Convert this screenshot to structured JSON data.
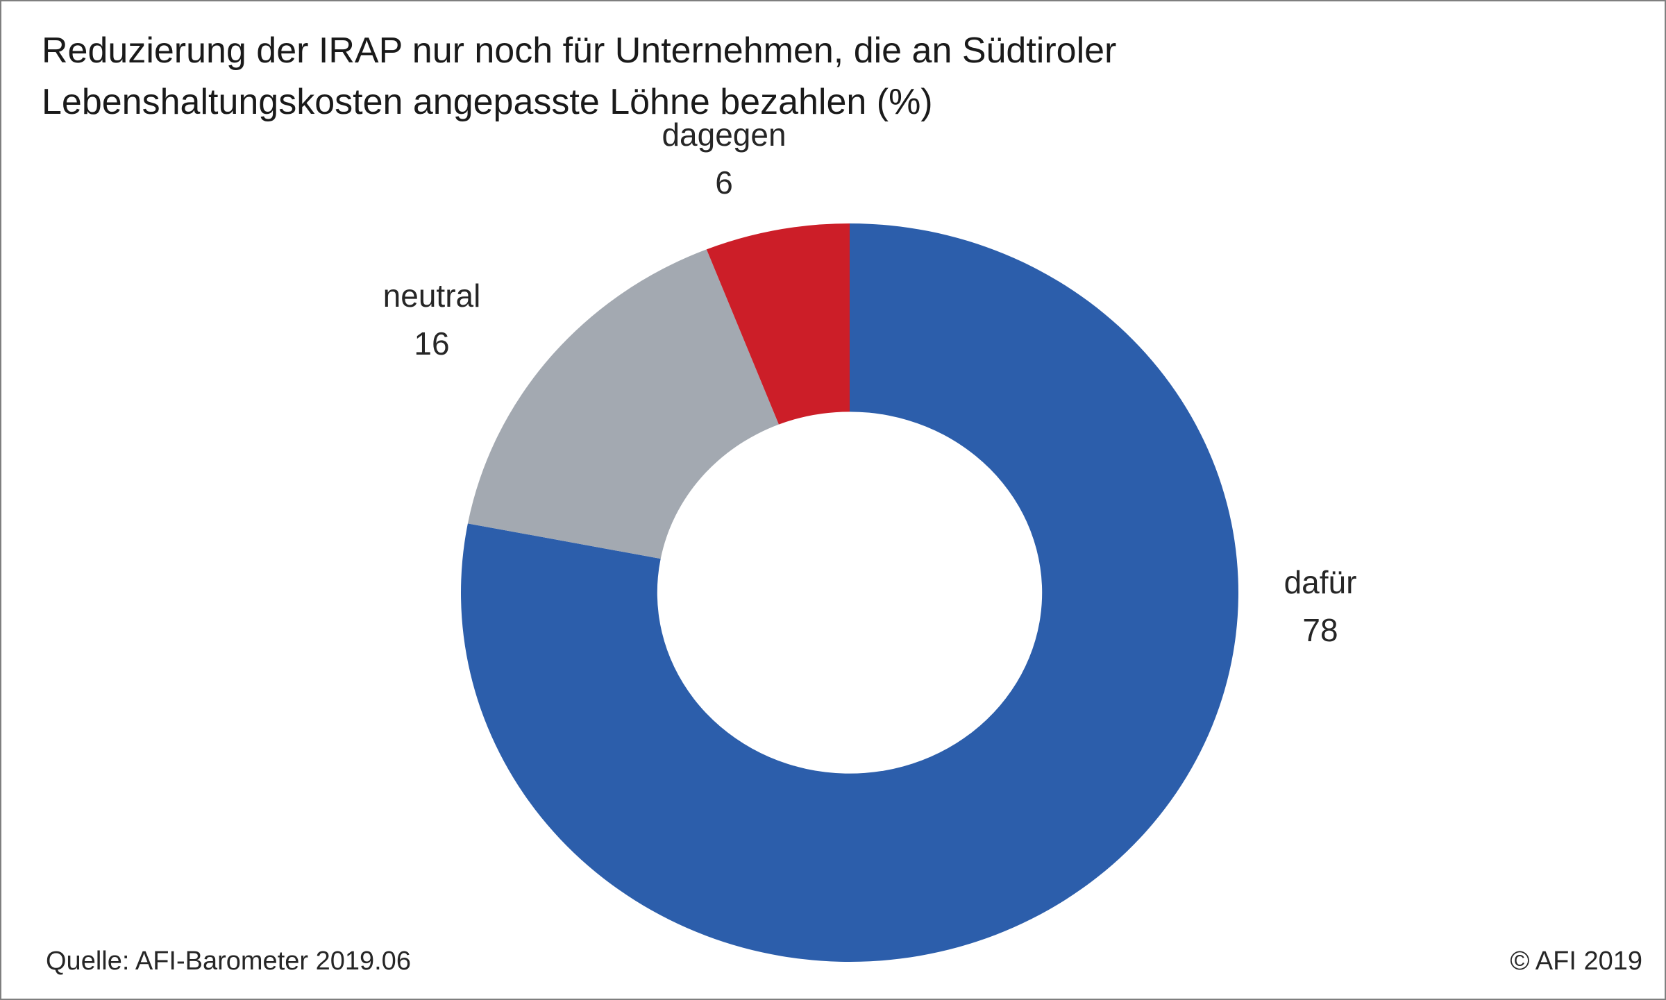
{
  "chart_data": {
    "type": "pie",
    "title_lines": [
      "Reduzierung der IRAP nur noch für Unternehmen, die an Südtiroler",
      "Lebenshaltungskosten angepasste Löhne bezahlen (%)"
    ],
    "categories": [
      "dafür",
      "neutral",
      "dagegen"
    ],
    "values": [
      78,
      16,
      6
    ],
    "value_labels": [
      "78",
      "16",
      "6"
    ],
    "colors": [
      "#2c5eab",
      "#a3a9b1",
      "#cc1e28"
    ],
    "hole": 0.5,
    "start_angle_deg": 0,
    "direction": "clockwise",
    "legend": "none"
  },
  "footer": {
    "source": "Quelle: AFI-Barometer 2019.06",
    "copyright": "© AFI 2019"
  }
}
